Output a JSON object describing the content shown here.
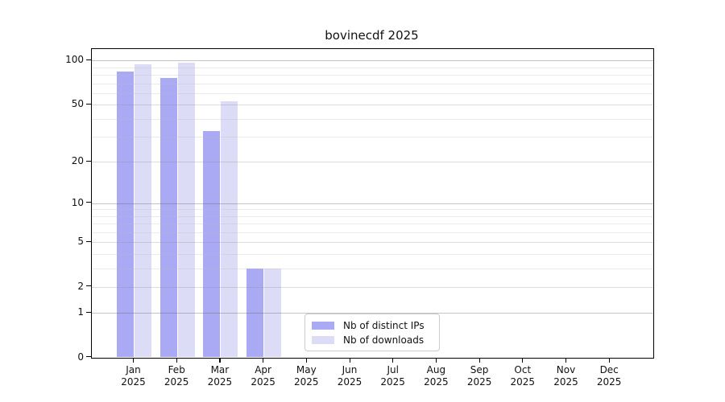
{
  "chart_data": {
    "type": "bar",
    "title": "bovinecdf 2025",
    "categories": [
      "Jan",
      "Feb",
      "Mar",
      "Apr",
      "May",
      "Jun",
      "Jul",
      "Aug",
      "Sep",
      "Oct",
      "Nov",
      "Dec"
    ],
    "x_year": "2025",
    "series": [
      {
        "name": "Nb of distinct IPs",
        "color": "#a9a9f4",
        "values": [
          84,
          76,
          33,
          3,
          0,
          0,
          0,
          0,
          0,
          0,
          0,
          0
        ]
      },
      {
        "name": "Nb of downloads",
        "color": "#dcdcf6",
        "values": [
          94,
          97,
          53,
          3,
          0,
          0,
          0,
          0,
          0,
          0,
          0,
          0
        ]
      }
    ],
    "y_axis": {
      "scale": "log1p",
      "ylim": [
        0,
        120
      ],
      "ticks_labeled": [
        0,
        1,
        2,
        5,
        10,
        20,
        50,
        100
      ],
      "ticks_decade": [
        1,
        10,
        100
      ],
      "ticks_mid": [
        2,
        5,
        20,
        50
      ],
      "ticks_minor": [
        3,
        4,
        6,
        7,
        8,
        9,
        30,
        40,
        60,
        70,
        80,
        90
      ]
    },
    "legend": {
      "position": "lower center"
    },
    "colors": {
      "spine": "#000000",
      "text": "#111111"
    }
  }
}
